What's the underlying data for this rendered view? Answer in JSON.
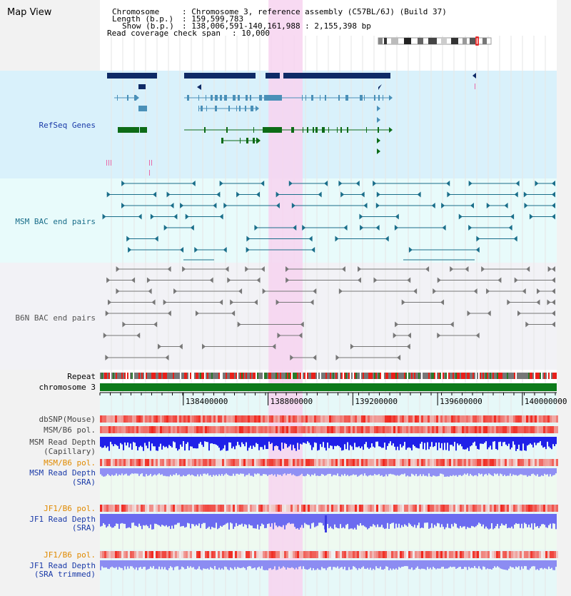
{
  "page_title": "Map View",
  "info": {
    "chromosome_key": "Chromosome",
    "chromosome_val": ": Chromosome 3, reference assembly (C57BL/6J) (Build 37)",
    "length_key": "Length (b.p.)",
    "length_val": ": 159,599,783",
    "show_key": "Show (b.p.)",
    "show_val": ": 138,006,591-140,161,988 : 2,155,398 bp",
    "span_key": "Read coverage check span",
    "span_val": ": 10,000"
  },
  "tracks": {
    "refseq": "RefSeq Genes",
    "msm_bac": "MSM BAC end pairs",
    "b6n_bac": "B6N BAC end pairs",
    "repeat": "Repeat",
    "chromosome": "chromosome 3",
    "dbsnp": "dbSNP(Mouse)",
    "msm_b6_pol_1": "MSM/B6 pol.",
    "msm_read_cap_1": "MSM Read Depth",
    "msm_read_cap_2": "(Capillary)",
    "msm_b6_pol_2": "MSM/B6 pol.",
    "msm_read_sra_1": "MSM Read Depth",
    "msm_read_sra_2": "(SRA)",
    "jf1_b6_pol_1": "JF1/B6 pol.",
    "jf1_read_sra_1": "JF1 Read Depth",
    "jf1_read_sra_2": "(SRA)",
    "jf1_b6_pol_2": "JF1/B6 pol.",
    "jf1_read_trim_1": "JF1 Read Depth",
    "jf1_read_trim_2": "(SRA trimmed)"
  },
  "axis": {
    "ticks": [
      {
        "label": "138400000",
        "value": 138400000
      },
      {
        "label": "138800000",
        "value": 138800000
      },
      {
        "label": "139200000",
        "value": 139200000
      },
      {
        "label": "139600000",
        "value": 139600000
      },
      {
        "label": "140000000",
        "value": 140000000
      }
    ],
    "view_start": 138006591,
    "view_end": 140161988,
    "highlight_start": 138802000,
    "highlight_end": 138963000
  },
  "colors": {
    "refseq_bg": "#d9f1fb",
    "msm_bg": "#e8fbfb",
    "b6n_bg": "#f2f2f6",
    "lower_bg": "#e6f8f8",
    "highlight": "#f7d3f0",
    "refseq_dark": "#0f2a66",
    "refseq_mid": "#4a90b8",
    "refseq_green": "#0d6b16",
    "msm_line": "#1a6e8a",
    "b6n_line": "#777777",
    "label_blue": "#1a3aa8",
    "label_orange": "#e08a00",
    "label_teal": "#1a6e8a"
  }
}
